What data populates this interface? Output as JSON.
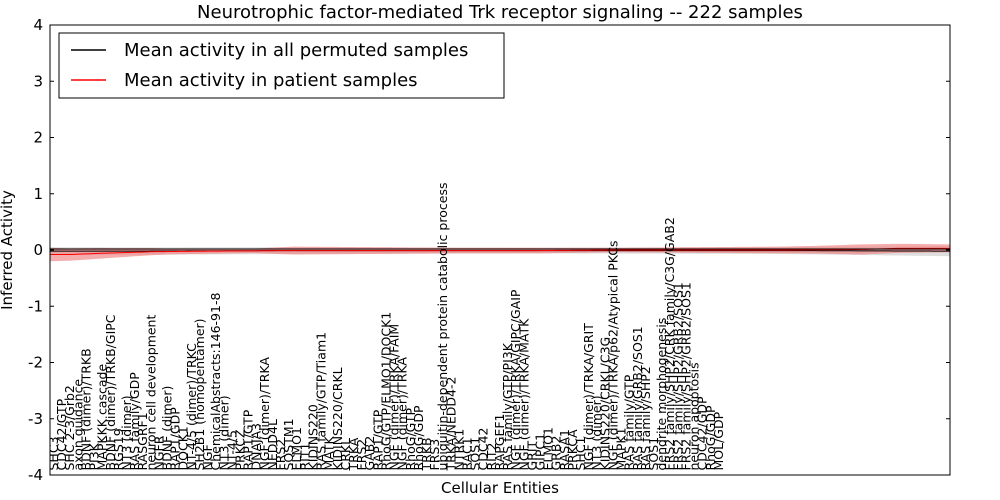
{
  "chart_data": {
    "type": "line",
    "title": "Neurotrophic factor-mediated Trk receptor signaling -- 222 samples",
    "xlabel": "Cellular Entities",
    "ylabel": "Inferred Activity",
    "ylim": [
      -4,
      4
    ],
    "yticks": [
      -4,
      -3,
      -2,
      -1,
      0,
      1,
      2,
      3,
      4
    ],
    "xlim": [
      0,
      222
    ],
    "legend_position": "top-left",
    "legend": [
      {
        "label": "Mean activity in all permuted samples",
        "color": "#000000"
      },
      {
        "label": "Mean activity in patient samples",
        "color": "#ff0000"
      }
    ],
    "series": [
      {
        "name": "Mean activity in all permuted samples",
        "color": "#000000",
        "band_color": "#c8c8c8",
        "points": [
          [
            0,
            -0.02
          ],
          [
            20,
            -0.02
          ],
          [
            60,
            -0.01
          ],
          [
            100,
            -0.01
          ],
          [
            140,
            -0.01
          ],
          [
            180,
            -0.01
          ],
          [
            222,
            -0.02
          ]
        ],
        "band": [
          [
            0,
            0.07
          ],
          [
            60,
            0.06
          ],
          [
            120,
            0.05
          ],
          [
            180,
            0.06
          ],
          [
            222,
            0.09
          ]
        ]
      },
      {
        "name": "Mean activity in patient samples",
        "color": "#ff0000",
        "band_color": "#f08080",
        "points": [
          [
            0,
            -0.08
          ],
          [
            5,
            -0.08
          ],
          [
            12,
            -0.06
          ],
          [
            25,
            -0.03
          ],
          [
            40,
            -0.02
          ],
          [
            60,
            -0.01
          ],
          [
            80,
            -0.01
          ],
          [
            100,
            -0.01
          ],
          [
            120,
            -0.01
          ],
          [
            140,
            0.0
          ],
          [
            160,
            0.0
          ],
          [
            180,
            0.0
          ],
          [
            200,
            0.01
          ],
          [
            210,
            0.03
          ],
          [
            215,
            0.03
          ],
          [
            222,
            0.03
          ]
        ],
        "band": [
          [
            0,
            0.12
          ],
          [
            10,
            0.1
          ],
          [
            30,
            0.05
          ],
          [
            50,
            0.04
          ],
          [
            60,
            0.07
          ],
          [
            80,
            0.06
          ],
          [
            100,
            0.05
          ],
          [
            120,
            0.05
          ],
          [
            140,
            0.04
          ],
          [
            160,
            0.05
          ],
          [
            180,
            0.06
          ],
          [
            190,
            0.07
          ],
          [
            200,
            0.09
          ],
          [
            210,
            0.08
          ],
          [
            222,
            0.07
          ]
        ]
      }
    ],
    "entity_labels": [
      {
        "x": 0,
        "y": -3.92,
        "text": "SHC3"
      },
      {
        "x": 2,
        "y": -3.92,
        "text": "CDC42/GTP"
      },
      {
        "x": 4,
        "y": -3.92,
        "text": "SHC 2-3/Grb2"
      },
      {
        "x": 6,
        "y": -3.92,
        "text": "axon guidance"
      },
      {
        "x": 8,
        "y": -3.92,
        "text": "BDNF (dimer)/TRKB"
      },
      {
        "x": 10,
        "y": -3.92,
        "text": "PI3K"
      },
      {
        "x": 12,
        "y": -3.92,
        "text": "MAPKKK cascade"
      },
      {
        "x": 14,
        "y": -3.92,
        "text": "BDNF (dimer)/TRKB/GIPC"
      },
      {
        "x": 16,
        "y": -3.92,
        "text": "RGS19"
      },
      {
        "x": 18,
        "y": -3.92,
        "text": "NT3 (dimer)"
      },
      {
        "x": 20,
        "y": -3.92,
        "text": "RAS family/GDP"
      },
      {
        "x": 22,
        "y": -3.92,
        "text": "RASGRF1"
      },
      {
        "x": 24,
        "y": -3.92,
        "text": "neuron cell development"
      },
      {
        "x": 26,
        "y": -3.92,
        "text": "NGFR"
      },
      {
        "x": 28,
        "y": -3.92,
        "text": "BDNF (dimer)"
      },
      {
        "x": 30,
        "y": -3.92,
        "text": "RAP1/GDP"
      },
      {
        "x": 32,
        "y": -3.92,
        "text": "DOCK1"
      },
      {
        "x": 34,
        "y": -3.92,
        "text": "NT-4/5 (dimer)/TRKC"
      },
      {
        "x": 36,
        "y": -3.92,
        "text": "SH2B1 (homopentamer)"
      },
      {
        "x": 38,
        "y": -3.92,
        "text": "NGF"
      },
      {
        "x": 40,
        "y": -3.92,
        "text": "ChemicalAbstracts:146-91-8"
      },
      {
        "x": 42,
        "y": -3.92,
        "text": "NT3 (dimer)"
      },
      {
        "x": 44,
        "y": -3.92,
        "text": "NT-4/5"
      },
      {
        "x": 46,
        "y": -3.92,
        "text": "PRKCZ"
      },
      {
        "x": 48,
        "y": -3.92,
        "text": "RAP1/GTP"
      },
      {
        "x": 50,
        "y": -3.92,
        "text": "DNAJA3"
      },
      {
        "x": 52,
        "y": -3.92,
        "text": "NGF (dimer)/TRKA"
      },
      {
        "x": 54,
        "y": -3.92,
        "text": "NEDD4L"
      },
      {
        "x": 56,
        "y": -3.92,
        "text": "FRS2"
      },
      {
        "x": 58,
        "y": -3.92,
        "text": "SQSTM1"
      },
      {
        "x": 60,
        "y": -3.92,
        "text": "ELMO1"
      },
      {
        "x": 62,
        "y": -3.92,
        "text": "RIT1"
      },
      {
        "x": 64,
        "y": -3.92,
        "text": "KIDINS220"
      },
      {
        "x": 66,
        "y": -3.92,
        "text": "RAS family/GTP/Tiam1"
      },
      {
        "x": 68,
        "y": -3.92,
        "text": "MATK"
      },
      {
        "x": 70,
        "y": -3.92,
        "text": "KIDINS220/CRKL"
      },
      {
        "x": 72,
        "y": -3.92,
        "text": "CRKL"
      },
      {
        "x": 74,
        "y": -3.92,
        "text": "TRKA"
      },
      {
        "x": 76,
        "y": -3.92,
        "text": "FRS2"
      },
      {
        "x": 78,
        "y": -3.92,
        "text": "GAB2"
      },
      {
        "x": 80,
        "y": -3.92,
        "text": "RAP1/GTP"
      },
      {
        "x": 82,
        "y": -3.92,
        "text": "RhoG/GTP/ELMO1/DOCK1"
      },
      {
        "x": 84,
        "y": -3.92,
        "text": "NGF (dimer)/TRKA/FAIM"
      },
      {
        "x": 86,
        "y": -3.92,
        "text": "NGF (dimer)/TRKA"
      },
      {
        "x": 88,
        "y": -3.92,
        "text": "RhoG/GTP"
      },
      {
        "x": 90,
        "y": -3.92,
        "text": "RhoG/GDP"
      },
      {
        "x": 92,
        "y": -3.92,
        "text": "TRKB"
      },
      {
        "x": 94,
        "y": -3.92,
        "text": "FRS3"
      },
      {
        "x": 96,
        "y": -3.92,
        "text": "ubiquitin-dependent protein catabolic process"
      },
      {
        "x": 98,
        "y": -3.92,
        "text": "TRKA/NEDD4-2"
      },
      {
        "x": 100,
        "y": -3.92,
        "text": "NTRK1"
      },
      {
        "x": 102,
        "y": -3.92,
        "text": "RAC1"
      },
      {
        "x": 104,
        "y": -3.92,
        "text": "SOS1"
      },
      {
        "x": 106,
        "y": -3.92,
        "text": "CDC42"
      },
      {
        "x": 108,
        "y": -3.92,
        "text": "RIT2"
      },
      {
        "x": 110,
        "y": -3.92,
        "text": "RAPGEF1"
      },
      {
        "x": 112,
        "y": -3.92,
        "text": "RAS family/GTP/PI3K"
      },
      {
        "x": 114,
        "y": -3.92,
        "text": "NGF (dimer)/TRKA/GIPC/GAIP"
      },
      {
        "x": 116,
        "y": -3.92,
        "text": "NGF (dimer)/TRKA/MATK"
      },
      {
        "x": 118,
        "y": -3.92,
        "text": "GRIT"
      },
      {
        "x": 120,
        "y": -3.92,
        "text": "GIPC1"
      },
      {
        "x": 122,
        "y": -3.92,
        "text": "ELMO1"
      },
      {
        "x": 124,
        "y": -3.92,
        "text": "GRB2"
      },
      {
        "x": 126,
        "y": -3.92,
        "text": "RASA1"
      },
      {
        "x": 128,
        "y": -3.92,
        "text": "PRKCA"
      },
      {
        "x": 130,
        "y": -3.92,
        "text": "SHC1"
      },
      {
        "x": 132,
        "y": -3.92,
        "text": "NGF (dimer)/TRKA/GRIT"
      },
      {
        "x": 134,
        "y": -3.92,
        "text": "NT3 (dimer)"
      },
      {
        "x": 136,
        "y": -3.92,
        "text": "KIDINS220/CRKL/C3G"
      },
      {
        "x": 138,
        "y": -3.92,
        "text": "NGF (dimer)/TRKA/p62/Atypical PKCs"
      },
      {
        "x": 140,
        "y": -3.92,
        "text": "MAPK1"
      },
      {
        "x": 142,
        "y": -3.92,
        "text": "RAS family/GTP"
      },
      {
        "x": 144,
        "y": -3.92,
        "text": "RAS family/GRB2/SOS1"
      },
      {
        "x": 146,
        "y": -3.92,
        "text": "RAS family/SHP2"
      },
      {
        "x": 148,
        "y": -3.92,
        "text": "SOS1"
      },
      {
        "x": 150,
        "y": -3.92,
        "text": "dendrite morphogenesis"
      },
      {
        "x": 152,
        "y": -3.92,
        "text": "FRS2 family/SHP2/CRK family/C3G/GAB2"
      },
      {
        "x": 154,
        "y": -3.92,
        "text": "FRS2 family/SHP2/GRB2/SOS1"
      },
      {
        "x": 156,
        "y": -3.92,
        "text": "FRS2 family/SHP2/GRB2/SOS1"
      },
      {
        "x": 158,
        "y": -3.92,
        "text": "neuron apoptosis"
      },
      {
        "x": 160,
        "y": -3.92,
        "text": "CDC42/GDP"
      },
      {
        "x": 162,
        "y": -3.92,
        "text": "RhoG/GDP"
      },
      {
        "x": 164,
        "y": -3.92,
        "text": "MOL/GDP"
      }
    ]
  }
}
